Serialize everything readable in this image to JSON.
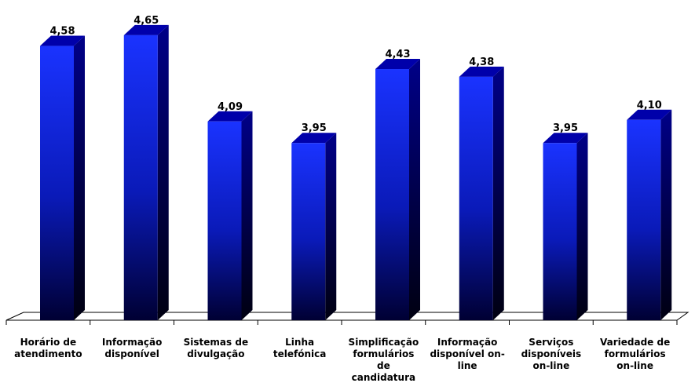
{
  "chart_data": {
    "type": "bar",
    "categories": [
      [
        "Horário de",
        "atendimento"
      ],
      [
        "Informação",
        "disponível"
      ],
      [
        "Sistemas de",
        "divulgação"
      ],
      [
        "Linha",
        "telefónica"
      ],
      [
        "Simplificação",
        "formulários",
        "de",
        "candidatura"
      ],
      [
        "Informação",
        "disponível on-",
        "line"
      ],
      [
        "Serviços",
        "disponíveis",
        "on-line"
      ],
      [
        "Variedade de",
        "formulários",
        "on-line"
      ]
    ],
    "values": [
      4.58,
      4.65,
      4.09,
      3.95,
      4.43,
      4.38,
      3.95,
      4.1
    ],
    "value_labels": [
      "4,58",
      "4,65",
      "4,09",
      "3,95",
      "4,43",
      "4,38",
      "3,95",
      "4,10"
    ],
    "ylim": [
      2.8,
      4.7
    ],
    "grid": false,
    "legend": "none",
    "style": "3d-column",
    "colors": {
      "bar_top": "#1a33ff",
      "bar_bottom": "#000033",
      "bar_side": "#000066",
      "bar_cap": "#0000aa",
      "axis": "#000000"
    }
  }
}
